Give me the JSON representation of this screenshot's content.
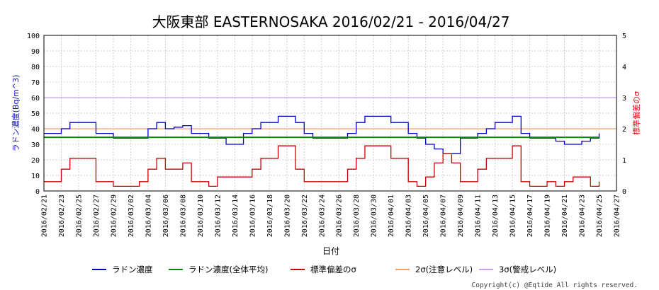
{
  "chart_data": {
    "type": "line",
    "title": "大阪東部 EASTERNOSAKA 2016/02/21 - 2016/04/27",
    "xlabel": "日付",
    "ylabel_left": "ラドン濃度(Bq/m^3)",
    "ylabel_right": "標準偏差のσ",
    "x_start": "2016/02/21",
    "x_end": "2016/04/27",
    "xtick_labels": [
      "2016/02/21",
      "2016/02/23",
      "2016/02/25",
      "2016/02/27",
      "2016/02/29",
      "2016/03/02",
      "2016/03/04",
      "2016/03/06",
      "2016/03/08",
      "2016/03/10",
      "2016/03/12",
      "2016/03/14",
      "2016/03/16",
      "2016/03/18",
      "2016/03/20",
      "2016/03/22",
      "2016/03/24",
      "2016/03/26",
      "2016/03/28",
      "2016/03/30",
      "2016/04/01",
      "2016/04/03",
      "2016/04/05",
      "2016/04/07",
      "2016/04/09",
      "2016/04/11",
      "2016/04/13",
      "2016/04/15",
      "2016/04/17",
      "2016/04/19",
      "2016/04/21",
      "2016/04/23",
      "2016/04/25",
      "2016/04/27"
    ],
    "ylim_left": [
      0,
      100
    ],
    "yticks_left": [
      "0",
      "10",
      "20",
      "30",
      "40",
      "50",
      "60",
      "70",
      "80",
      "90",
      "100"
    ],
    "ylim_right": [
      0,
      5
    ],
    "yticks_right": [
      "0",
      "1",
      "2",
      "3",
      "4",
      "5"
    ],
    "grid": true,
    "legend_position": "bottom",
    "series": [
      {
        "name": "ラドン濃度",
        "color": "#0000cc",
        "axis": "left",
        "points": [
          [
            "2016/02/21",
            37
          ],
          [
            "2016/02/22",
            37
          ],
          [
            "2016/02/23",
            40
          ],
          [
            "2016/02/24",
            44
          ],
          [
            "2016/02/25",
            44
          ],
          [
            "2016/02/26",
            44
          ],
          [
            "2016/02/27",
            37
          ],
          [
            "2016/02/28",
            37
          ],
          [
            "2016/02/29",
            34
          ],
          [
            "2016/03/01",
            34
          ],
          [
            "2016/03/02",
            34
          ],
          [
            "2016/03/03",
            34
          ],
          [
            "2016/03/04",
            40
          ],
          [
            "2016/03/05",
            44
          ],
          [
            "2016/03/06",
            40
          ],
          [
            "2016/03/07",
            41
          ],
          [
            "2016/03/08",
            42
          ],
          [
            "2016/03/09",
            37
          ],
          [
            "2016/03/10",
            37
          ],
          [
            "2016/03/11",
            34
          ],
          [
            "2016/03/12",
            34
          ],
          [
            "2016/03/13",
            30
          ],
          [
            "2016/03/14",
            30
          ],
          [
            "2016/03/15",
            37
          ],
          [
            "2016/03/16",
            40
          ],
          [
            "2016/03/17",
            44
          ],
          [
            "2016/03/18",
            44
          ],
          [
            "2016/03/19",
            48
          ],
          [
            "2016/03/20",
            48
          ],
          [
            "2016/03/21",
            44
          ],
          [
            "2016/03/22",
            37
          ],
          [
            "2016/03/23",
            34
          ],
          [
            "2016/03/24",
            34
          ],
          [
            "2016/03/25",
            34
          ],
          [
            "2016/03/26",
            34
          ],
          [
            "2016/03/27",
            37
          ],
          [
            "2016/03/28",
            44
          ],
          [
            "2016/03/29",
            48
          ],
          [
            "2016/03/30",
            48
          ],
          [
            "2016/03/31",
            48
          ],
          [
            "2016/04/01",
            44
          ],
          [
            "2016/04/02",
            44
          ],
          [
            "2016/04/03",
            37
          ],
          [
            "2016/04/04",
            34
          ],
          [
            "2016/04/05",
            30
          ],
          [
            "2016/04/06",
            27
          ],
          [
            "2016/04/07",
            24
          ],
          [
            "2016/04/08",
            24
          ],
          [
            "2016/04/09",
            34
          ],
          [
            "2016/04/10",
            34
          ],
          [
            "2016/04/11",
            37
          ],
          [
            "2016/04/12",
            40
          ],
          [
            "2016/04/13",
            44
          ],
          [
            "2016/04/14",
            44
          ],
          [
            "2016/04/15",
            48
          ],
          [
            "2016/04/16",
            37
          ],
          [
            "2016/04/17",
            34
          ],
          [
            "2016/04/18",
            34
          ],
          [
            "2016/04/19",
            34
          ],
          [
            "2016/04/20",
            32
          ],
          [
            "2016/04/21",
            30
          ],
          [
            "2016/04/22",
            30
          ],
          [
            "2016/04/23",
            32
          ],
          [
            "2016/04/24",
            34
          ],
          [
            "2016/04/25",
            37
          ]
        ]
      },
      {
        "name": "ラドン濃度(全体平均)",
        "color": "#008800",
        "axis": "left",
        "points": [
          [
            "2016/02/21",
            34.5
          ],
          [
            "2016/04/25",
            34.5
          ]
        ]
      },
      {
        "name": "標準偏差のσ",
        "color": "#cc0000",
        "axis": "right",
        "points": [
          [
            "2016/02/21",
            0.3
          ],
          [
            "2016/02/22",
            0.3
          ],
          [
            "2016/02/23",
            0.7
          ],
          [
            "2016/02/24",
            1.05
          ],
          [
            "2016/02/25",
            1.05
          ],
          [
            "2016/02/26",
            1.05
          ],
          [
            "2016/02/27",
            0.3
          ],
          [
            "2016/02/28",
            0.3
          ],
          [
            "2016/02/29",
            0.15
          ],
          [
            "2016/03/01",
            0.15
          ],
          [
            "2016/03/02",
            0.15
          ],
          [
            "2016/03/03",
            0.3
          ],
          [
            "2016/03/04",
            0.7
          ],
          [
            "2016/03/05",
            1.05
          ],
          [
            "2016/03/06",
            0.7
          ],
          [
            "2016/03/07",
            0.7
          ],
          [
            "2016/03/08",
            0.9
          ],
          [
            "2016/03/09",
            0.3
          ],
          [
            "2016/03/10",
            0.3
          ],
          [
            "2016/03/11",
            0.15
          ],
          [
            "2016/03/12",
            0.45
          ],
          [
            "2016/03/13",
            0.45
          ],
          [
            "2016/03/14",
            0.45
          ],
          [
            "2016/03/15",
            0.45
          ],
          [
            "2016/03/16",
            0.7
          ],
          [
            "2016/03/17",
            1.05
          ],
          [
            "2016/03/18",
            1.05
          ],
          [
            "2016/03/19",
            1.45
          ],
          [
            "2016/03/20",
            1.45
          ],
          [
            "2016/03/21",
            0.7
          ],
          [
            "2016/03/22",
            0.3
          ],
          [
            "2016/03/23",
            0.3
          ],
          [
            "2016/03/24",
            0.3
          ],
          [
            "2016/03/25",
            0.3
          ],
          [
            "2016/03/26",
            0.3
          ],
          [
            "2016/03/27",
            0.7
          ],
          [
            "2016/03/28",
            1.05
          ],
          [
            "2016/03/29",
            1.45
          ],
          [
            "2016/03/30",
            1.45
          ],
          [
            "2016/03/31",
            1.45
          ],
          [
            "2016/04/01",
            1.05
          ],
          [
            "2016/04/02",
            1.05
          ],
          [
            "2016/04/03",
            0.3
          ],
          [
            "2016/04/04",
            0.15
          ],
          [
            "2016/04/05",
            0.45
          ],
          [
            "2016/04/06",
            0.9
          ],
          [
            "2016/04/07",
            1.2
          ],
          [
            "2016/04/08",
            0.9
          ],
          [
            "2016/04/09",
            0.3
          ],
          [
            "2016/04/10",
            0.3
          ],
          [
            "2016/04/11",
            0.7
          ],
          [
            "2016/04/12",
            1.05
          ],
          [
            "2016/04/13",
            1.05
          ],
          [
            "2016/04/14",
            1.05
          ],
          [
            "2016/04/15",
            1.45
          ],
          [
            "2016/04/16",
            0.3
          ],
          [
            "2016/04/17",
            0.15
          ],
          [
            "2016/04/18",
            0.15
          ],
          [
            "2016/04/19",
            0.3
          ],
          [
            "2016/04/20",
            0.15
          ],
          [
            "2016/04/21",
            0.3
          ],
          [
            "2016/04/22",
            0.45
          ],
          [
            "2016/04/23",
            0.45
          ],
          [
            "2016/04/24",
            0.15
          ],
          [
            "2016/04/25",
            0.3
          ]
        ]
      },
      {
        "name": "2σ(注意レベル)",
        "color": "#f4a06a",
        "axis": "right",
        "points": [
          [
            "2016/02/21",
            2
          ],
          [
            "2016/04/27",
            2
          ]
        ]
      },
      {
        "name": "3σ(警戒レベル)",
        "color": "#c8a0ee",
        "axis": "right",
        "points": [
          [
            "2016/02/21",
            3
          ],
          [
            "2016/04/27",
            3
          ]
        ]
      }
    ]
  },
  "copyright": "Copyright(c) @Eqtide All rights reserved."
}
